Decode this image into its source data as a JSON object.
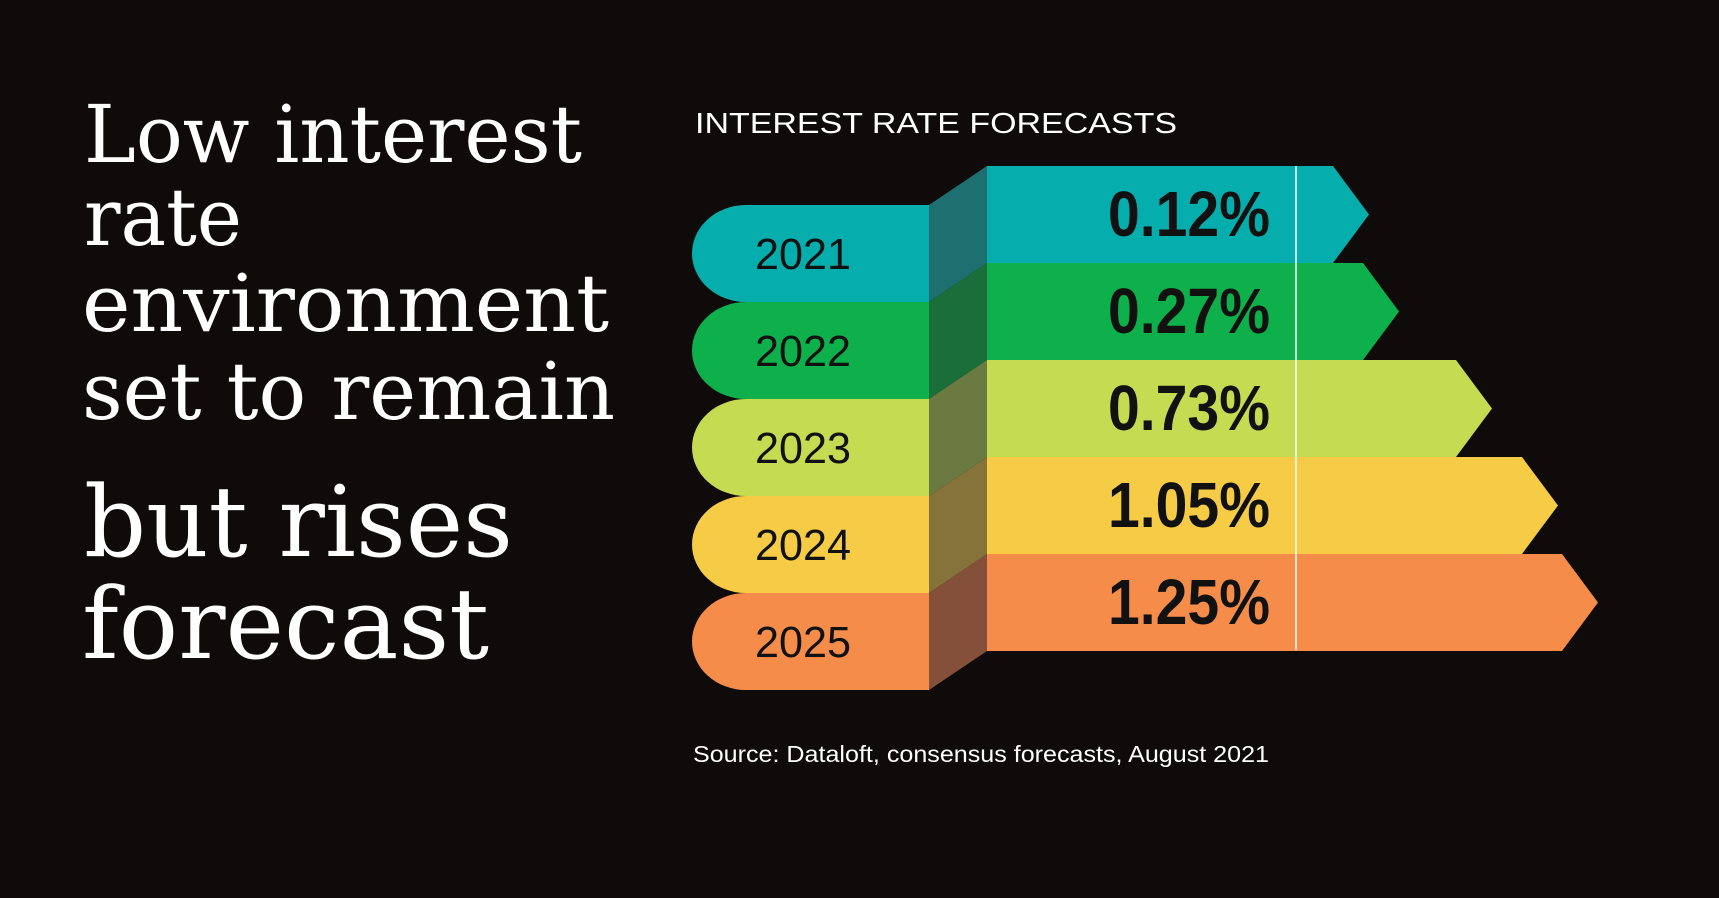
{
  "headline": {
    "lines": [
      "Low interest",
      "rate",
      "environment",
      "set to remain",
      "but rises",
      "forecast"
    ]
  },
  "chart_data": {
    "type": "bar",
    "title": "INTEREST RATE FORECASTS",
    "categories": [
      "2021",
      "2022",
      "2023",
      "2024",
      "2025"
    ],
    "values": [
      0.12,
      0.27,
      0.73,
      1.05,
      1.25
    ],
    "value_labels": [
      "0.12%",
      "0.27%",
      "0.73%",
      "1.05%",
      "1.25%"
    ],
    "unit": "%",
    "colors": [
      "#05aead",
      "#0db04b",
      "#c5db52",
      "#f6cb45",
      "#f68c4a"
    ],
    "side_colors": [
      "#1e6f70",
      "#1a6e3a",
      "#6a7a40",
      "#85733a",
      "#855039"
    ],
    "xlabel": "",
    "ylabel": "",
    "source": "Source: Dataloft, consensus forecasts, August 2021"
  },
  "colors": {
    "background": "#0e0b0a",
    "text": "#ffffff",
    "label_text": "#111111"
  }
}
